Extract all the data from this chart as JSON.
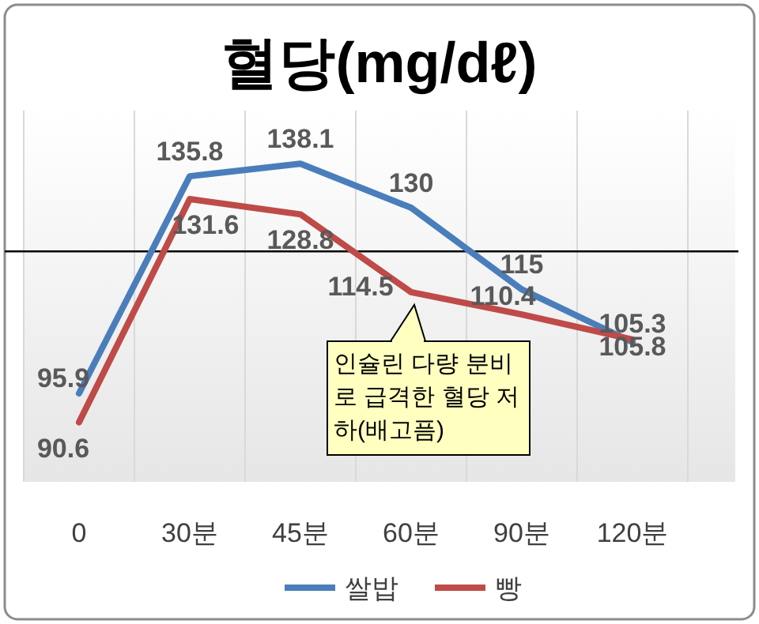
{
  "chart_data": {
    "type": "line",
    "title": "혈당(mg/dℓ)",
    "categories": [
      "0",
      "30분",
      "45분",
      "60분",
      "90분",
      "120분"
    ],
    "series": [
      {
        "name": "쌀밥",
        "color": "#4a7ebb",
        "values": [
          95.9,
          135.8,
          138.1,
          130,
          115,
          105.3
        ]
      },
      {
        "name": "빵",
        "color": "#be4b48",
        "values": [
          90.6,
          131.6,
          128.8,
          114.5,
          110.4,
          105.8
        ]
      }
    ],
    "data_labels": true,
    "ref_lines": [
      {
        "axis": "y",
        "value": 122,
        "color": "#000000"
      }
    ],
    "annotations": [
      {
        "text": "인슐린 다량 분비로 급격한 혈당 저하(배고픔)",
        "x": "60분",
        "y": 114.5
      }
    ],
    "grid": "x",
    "legend": "bottom",
    "marker": "none",
    "line_style": "solid"
  }
}
